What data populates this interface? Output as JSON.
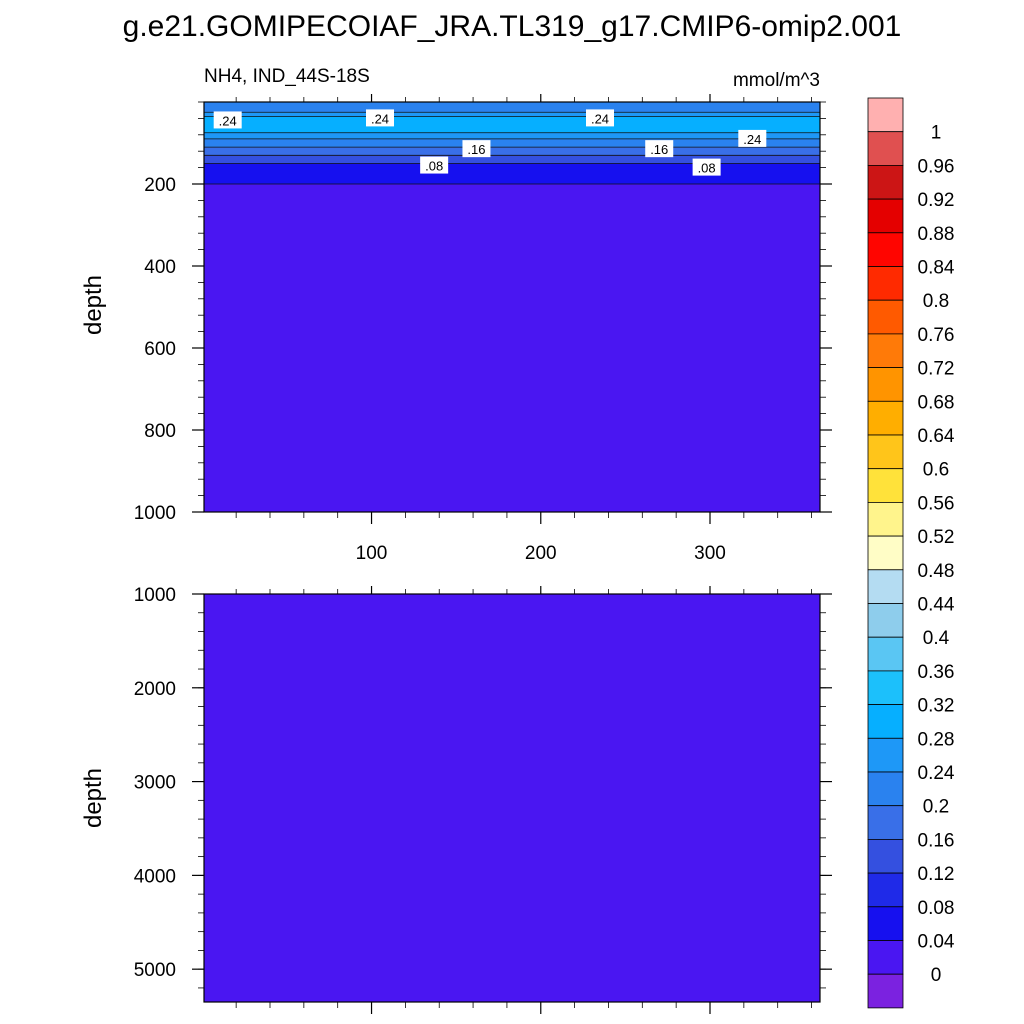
{
  "title": "g.e21.GOMIPECOIAF_JRA.TL319_g17.CMIP6-omip2.001",
  "variable_label": "NH4, IND_44S-18S",
  "units_label": "mmol/m^3",
  "chart_data": [
    {
      "type": "heatmap",
      "panel": "upper",
      "ylabel": "depth",
      "xlabel": "",
      "xlim": [
        1,
        365
      ],
      "ylim": [
        1000,
        0
      ],
      "x_ticks": [
        100,
        200,
        300
      ],
      "y_ticks": [
        200,
        400,
        600,
        800,
        1000
      ],
      "grid": false,
      "contour_bands": [
        {
          "depth_top": 0,
          "depth_bottom": 25,
          "value": 0.2
        },
        {
          "depth_top": 25,
          "depth_bottom": 35,
          "value": 0.24
        },
        {
          "depth_top": 35,
          "depth_bottom": 75,
          "value": 0.28
        },
        {
          "depth_top": 75,
          "depth_bottom": 90,
          "value": 0.24
        },
        {
          "depth_top": 90,
          "depth_bottom": 110,
          "value": 0.2
        },
        {
          "depth_top": 110,
          "depth_bottom": 130,
          "value": 0.16
        },
        {
          "depth_top": 130,
          "depth_bottom": 150,
          "value": 0.12
        },
        {
          "depth_top": 150,
          "depth_bottom": 200,
          "value": 0.04
        },
        {
          "depth_top": 200,
          "depth_bottom": 1000,
          "value": 0.0
        }
      ],
      "contour_labels": [
        {
          "text": ".24",
          "x": 15,
          "depth": 45
        },
        {
          "text": ".24",
          "x": 105,
          "depth": 40
        },
        {
          "text": ".24",
          "x": 235,
          "depth": 40
        },
        {
          "text": ".24",
          "x": 325,
          "depth": 90
        },
        {
          "text": ".16",
          "x": 162,
          "depth": 115
        },
        {
          "text": ".16",
          "x": 270,
          "depth": 115
        },
        {
          "text": ".08",
          "x": 137,
          "depth": 155
        },
        {
          "text": ".08",
          "x": 298,
          "depth": 160
        }
      ]
    },
    {
      "type": "heatmap",
      "panel": "lower",
      "ylabel": "depth",
      "xlabel": "",
      "xlim": [
        1,
        365
      ],
      "ylim": [
        5350,
        1000
      ],
      "y_ticks": [
        1000,
        2000,
        3000,
        4000,
        5000
      ],
      "grid": false,
      "contour_bands": [
        {
          "depth_top": 1000,
          "depth_bottom": 5350,
          "value": 0.0
        }
      ]
    }
  ],
  "colorbar": {
    "levels": [
      "0",
      "0.04",
      "0.08",
      "0.12",
      "0.16",
      "0.2",
      "0.24",
      "0.28",
      "0.32",
      "0.36",
      "0.4",
      "0.44",
      "0.48",
      "0.52",
      "0.56",
      "0.6",
      "0.64",
      "0.68",
      "0.72",
      "0.76",
      "0.8",
      "0.84",
      "0.88",
      "0.92",
      "0.96",
      "1"
    ],
    "colors": [
      "#7b22e0",
      "#4a16f2",
      "#1610ef",
      "#1f2ae8",
      "#3450e0",
      "#396fe8",
      "#2a82ef",
      "#1e98f7",
      "#06afff",
      "#1cc0fb",
      "#5ac6f3",
      "#8ecdec",
      "#b4dcf2",
      "#fffdc6",
      "#fff48c",
      "#ffe23a",
      "#ffc51a",
      "#ffae00",
      "#ff9400",
      "#ff7a08",
      "#ff5a00",
      "#ff2a00",
      "#ff0500",
      "#e40000",
      "#cc1515",
      "#e05050",
      "#ffb0b0"
    ]
  }
}
